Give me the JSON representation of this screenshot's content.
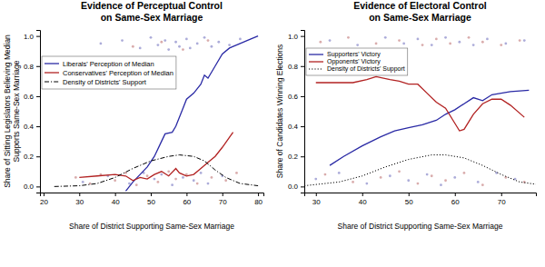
{
  "chart_data": [
    {
      "type": "line",
      "title": "Evidence of Perceptual Control\non Same-Sex Marriage",
      "x_label": "Share of District Supporting Same-Sex Marriage",
      "y_label": "Share of Sitting Legislators Believing Median\nSupports Same-Sex Marriage",
      "xlim": [
        19,
        81.5
      ],
      "xticks": [
        20,
        30,
        40,
        50,
        60,
        70,
        80
      ],
      "ylim": [
        -0.04,
        1.04
      ],
      "yticks": [
        {
          "value": 0,
          "label": "0.0"
        },
        0.2,
        0.4,
        0.6,
        0.8,
        {
          "value": 1,
          "label": "1.0"
        }
      ],
      "legend": "upper left",
      "series": [
        {
          "name": "Liberals' Perception of Median",
          "type": "line",
          "color": "#2a2aa5",
          "line_style": "solid",
          "x": [
            43,
            45,
            47,
            49,
            51,
            53,
            54,
            56,
            57,
            59,
            60,
            62,
            64,
            65,
            66,
            68,
            70,
            72,
            75,
            78,
            80
          ],
          "values": [
            -0.03,
            0.03,
            0.08,
            0.13,
            0.2,
            0.3,
            0.35,
            0.36,
            0.4,
            0.52,
            0.58,
            0.62,
            0.68,
            0.74,
            0.72,
            0.8,
            0.88,
            0.92,
            0.95,
            0.98,
            1.0
          ]
        },
        {
          "name": "Conservatives' Perception of Median",
          "type": "line",
          "color": "#b22222",
          "line_style": "solid",
          "x": [
            30,
            35,
            40,
            43,
            45,
            47,
            49,
            51,
            53,
            55,
            57,
            58,
            60,
            62,
            64,
            66,
            68,
            70,
            73
          ],
          "values": [
            0.06,
            0.07,
            0.08,
            0.07,
            0.04,
            0.06,
            0.05,
            0.08,
            0.1,
            0.07,
            0.12,
            0.09,
            0.07,
            0.08,
            0.12,
            0.16,
            0.2,
            0.26,
            0.36
          ]
        },
        {
          "name": "Density of Districts' Support",
          "type": "line",
          "color": "#000000",
          "line_style": "dashdot",
          "x": [
            23,
            30,
            35,
            40,
            45,
            50,
            55,
            58,
            62,
            65,
            68,
            71,
            75,
            80
          ],
          "values": [
            0,
            0.005,
            0.02,
            0.06,
            0.12,
            0.17,
            0.2,
            0.21,
            0.2,
            0.17,
            0.11,
            0.06,
            0.02,
            0.005
          ]
        },
        {
          "type": "scatter",
          "color": "#7f7fc4",
          "marker": "circle",
          "x": [
            36,
            42,
            47,
            50,
            52,
            54,
            55,
            57,
            58,
            60,
            61,
            63,
            65,
            67,
            69,
            72,
            75,
            31,
            38,
            44,
            48,
            51,
            53,
            56,
            59,
            62,
            64,
            66,
            70
          ],
          "values": [
            0.95,
            0.97,
            0.92,
            0.99,
            0.94,
            0.97,
            0.91,
            0.96,
            0.93,
            0.98,
            0.92,
            0.95,
            0.99,
            0.93,
            0.96,
            0.94,
            0.98,
            0.03,
            0.07,
            0.02,
            0.09,
            0.05,
            0.08,
            0.01,
            0.06,
            0.04,
            0.09,
            0.02,
            0.07
          ]
        },
        {
          "type": "scatter",
          "color": "#c47f7f",
          "marker": "circle",
          "x": [
            45,
            53,
            59,
            66,
            29,
            33,
            36,
            40,
            43,
            46,
            49,
            52,
            55,
            57,
            60,
            63,
            67,
            71,
            74
          ],
          "values": [
            0.93,
            0.96,
            0.91,
            0.97,
            0.06,
            0.02,
            0.08,
            0.04,
            0.09,
            0.01,
            0.07,
            0.03,
            0.1,
            0.05,
            0.08,
            0.02,
            0.06,
            0.04,
            0.09
          ]
        }
      ]
    },
    {
      "type": "line",
      "title": "Evidence of Electoral Control\non Same-Sex Marriage",
      "x_label": "Share of District Supporting Same-Sex Marriage",
      "y_label": "Share of Candidates Winning Elections",
      "xlim": [
        27.5,
        77.5
      ],
      "xticks": [
        30,
        40,
        50,
        60,
        70
      ],
      "ylim": [
        -0.04,
        1.04
      ],
      "yticks": [
        {
          "value": 0,
          "label": "0.0"
        },
        0.2,
        0.4,
        0.6,
        0.8,
        {
          "value": 1,
          "label": "1.0"
        }
      ],
      "legend": "upper left",
      "series": [
        {
          "name": "Supporters' Victory",
          "type": "line",
          "color": "#2a2aa5",
          "line_style": "solid",
          "x": [
            33,
            36,
            40,
            44,
            47,
            50,
            53,
            56,
            58,
            60,
            62,
            64,
            66,
            68,
            72,
            76
          ],
          "values": [
            0.14,
            0.2,
            0.27,
            0.33,
            0.37,
            0.39,
            0.41,
            0.44,
            0.48,
            0.51,
            0.55,
            0.59,
            0.57,
            0.61,
            0.63,
            0.64
          ]
        },
        {
          "name": "Opponents' Victory",
          "type": "line",
          "color": "#b22222",
          "line_style": "solid",
          "x": [
            30,
            34,
            38,
            41,
            43,
            46,
            48,
            50,
            52,
            54,
            56,
            58,
            60,
            61,
            62,
            64,
            66,
            68,
            70,
            72,
            75
          ],
          "values": [
            0.69,
            0.69,
            0.69,
            0.71,
            0.73,
            0.71,
            0.7,
            0.68,
            0.68,
            0.62,
            0.56,
            0.52,
            0.42,
            0.37,
            0.38,
            0.48,
            0.55,
            0.58,
            0.58,
            0.54,
            0.46
          ]
        },
        {
          "name": "Density of Districts' Support",
          "type": "line",
          "color": "#000000",
          "line_style": "dotted",
          "x": [
            27.5,
            35,
            40,
            45,
            50,
            55,
            58,
            62,
            66,
            70,
            74,
            77.5
          ],
          "values": [
            0.005,
            0.03,
            0.07,
            0.13,
            0.18,
            0.21,
            0.21,
            0.19,
            0.14,
            0.08,
            0.03,
            0.015
          ]
        },
        {
          "type": "scatter",
          "color": "#7f7fc4",
          "marker": "circle",
          "x": [
            33,
            39,
            45,
            49,
            52,
            55,
            58,
            61,
            64,
            67,
            71,
            75,
            30,
            35,
            41,
            46,
            50,
            54,
            57,
            60,
            65,
            69,
            73
          ],
          "values": [
            0.97,
            0.94,
            0.99,
            0.95,
            0.98,
            0.94,
            0.99,
            0.96,
            0.94,
            0.98,
            0.95,
            0.97,
            0.05,
            0.09,
            0.02,
            0.07,
            0.04,
            0.08,
            0.01,
            0.06,
            0.03,
            0.09,
            0.05
          ]
        },
        {
          "type": "scatter",
          "color": "#c47f7f",
          "marker": "circle",
          "x": [
            31,
            37,
            43,
            48,
            53,
            56,
            59,
            63,
            66,
            70,
            74,
            32,
            38,
            44,
            48,
            52,
            55,
            58,
            62,
            66,
            71,
            75
          ],
          "values": [
            0.96,
            0.99,
            0.95,
            0.97,
            0.94,
            0.98,
            0.95,
            0.99,
            0.96,
            0.94,
            0.97,
            0.08,
            0.03,
            0.06,
            0.1,
            0.02,
            0.07,
            0.04,
            0.09,
            0.01,
            0.06,
            0.03
          ]
        }
      ]
    }
  ]
}
